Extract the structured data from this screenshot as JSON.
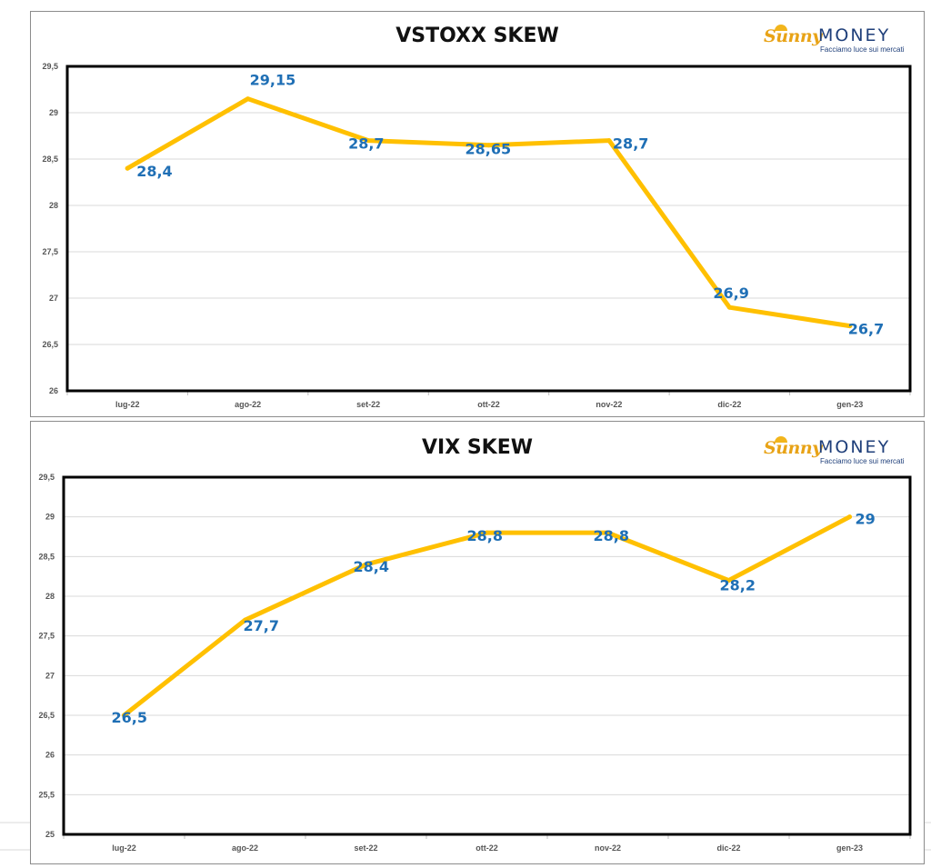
{
  "logo": {
    "brand_part1": "Sunny",
    "brand_part2": "MONEY",
    "tagline": "Facciamo luce sui mercati"
  },
  "colors": {
    "line": "#ffc000",
    "data_label": "#1f6fb5",
    "plot_border": "#000000",
    "gridline": "#d9d9d9",
    "axis_text": "#555555"
  },
  "chart_data": [
    {
      "type": "line",
      "title": "VSTOXX SKEW",
      "categories": [
        "lug-22",
        "ago-22",
        "set-22",
        "ott-22",
        "nov-22",
        "dic-22",
        "gen-23"
      ],
      "values": [
        28.4,
        29.15,
        28.7,
        28.65,
        28.7,
        26.9,
        26.7
      ],
      "data_labels": [
        "28,4",
        "29,15",
        "28,7",
        "28,65",
        "28,7",
        "26,9",
        "26,7"
      ],
      "ylim": [
        26,
        29.5
      ],
      "y_ticks": [
        26,
        26.5,
        27,
        27.5,
        28,
        28.5,
        29,
        29.5
      ],
      "y_tick_labels": [
        "26",
        "26,5",
        "27",
        "27,5",
        "28",
        "28,5",
        "29",
        "29,5"
      ],
      "xlabel": "",
      "ylabel": "",
      "grid": true,
      "legend": "none"
    },
    {
      "type": "line",
      "title": "VIX SKEW",
      "categories": [
        "lug-22",
        "ago-22",
        "set-22",
        "ott-22",
        "nov-22",
        "dic-22",
        "gen-23"
      ],
      "values": [
        26.5,
        27.7,
        28.4,
        28.8,
        28.8,
        28.2,
        29
      ],
      "data_labels": [
        "26,5",
        "27,7",
        "28,4",
        "28,8",
        "28,8",
        "28,2",
        "29"
      ],
      "ylim": [
        25,
        29.5
      ],
      "y_ticks": [
        25,
        25.5,
        26,
        26.5,
        27,
        27.5,
        28,
        28.5,
        29,
        29.5
      ],
      "y_tick_labels": [
        "25",
        "25,5",
        "26",
        "26,5",
        "27",
        "27,5",
        "28",
        "28,5",
        "29",
        "29,5"
      ],
      "xlabel": "",
      "ylabel": "",
      "grid": true,
      "legend": "none"
    }
  ]
}
